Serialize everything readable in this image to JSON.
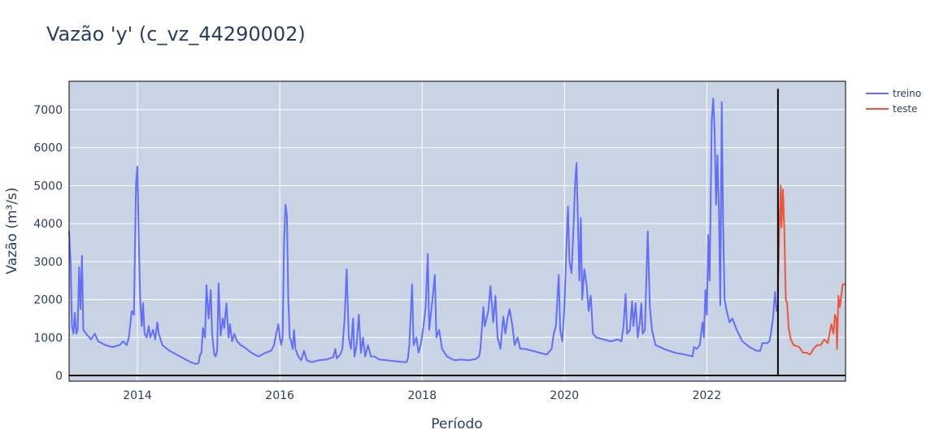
{
  "chart_data": {
    "type": "line",
    "title": "Vazão 'y' (c_vz_44290002)",
    "xlabel": "Período",
    "ylabel": "Vazão (m³/s)",
    "xlim": [
      2013.04,
      2023.95
    ],
    "ylim": [
      -150,
      7750
    ],
    "x_ticks": [
      2014,
      2016,
      2018,
      2020,
      2022
    ],
    "x_tick_labels": [
      "2014",
      "2016",
      "2018",
      "2020",
      "2022"
    ],
    "y_ticks": [
      0,
      1000,
      2000,
      3000,
      4000,
      5000,
      6000,
      7000
    ],
    "y_tick_labels": [
      "0",
      "1000",
      "2000",
      "3000",
      "4000",
      "5000",
      "6000",
      "7000"
    ],
    "grid": true,
    "legend_position": "top-right",
    "split_line_x": 2023.0,
    "colors": {
      "treino": "#636efa",
      "teste": "#ef553b",
      "plot_bg": "#c8d4e3",
      "split": "#000000"
    },
    "series": [
      {
        "name": "treino",
        "color": "#636efa",
        "points": [
          [
            2013.04,
            3800
          ],
          [
            2013.06,
            3000
          ],
          [
            2013.08,
            1300
          ],
          [
            2013.1,
            1100
          ],
          [
            2013.12,
            1650
          ],
          [
            2013.14,
            1100
          ],
          [
            2013.16,
            1200
          ],
          [
            2013.18,
            2850
          ],
          [
            2013.2,
            1750
          ],
          [
            2013.22,
            3150
          ],
          [
            2013.24,
            1200
          ],
          [
            2013.3,
            1050
          ],
          [
            2013.35,
            950
          ],
          [
            2013.4,
            1100
          ],
          [
            2013.45,
            900
          ],
          [
            2013.55,
            800
          ],
          [
            2013.65,
            750
          ],
          [
            2013.75,
            800
          ],
          [
            2013.8,
            900
          ],
          [
            2013.85,
            800
          ],
          [
            2013.88,
            1000
          ],
          [
            2013.92,
            1700
          ],
          [
            2013.95,
            1600
          ],
          [
            2013.98,
            5050
          ],
          [
            2014.0,
            5500
          ],
          [
            2014.02,
            3500
          ],
          [
            2014.04,
            2000
          ],
          [
            2014.06,
            1300
          ],
          [
            2014.08,
            1900
          ],
          [
            2014.1,
            1100
          ],
          [
            2014.13,
            1000
          ],
          [
            2014.16,
            1300
          ],
          [
            2014.18,
            1000
          ],
          [
            2014.22,
            1200
          ],
          [
            2014.25,
            950
          ],
          [
            2014.28,
            1400
          ],
          [
            2014.3,
            1100
          ],
          [
            2014.35,
            800
          ],
          [
            2014.45,
            650
          ],
          [
            2014.55,
            550
          ],
          [
            2014.65,
            450
          ],
          [
            2014.75,
            350
          ],
          [
            2014.82,
            300
          ],
          [
            2014.86,
            330
          ],
          [
            2014.88,
            550
          ],
          [
            2014.9,
            600
          ],
          [
            2014.92,
            1250
          ],
          [
            2014.95,
            1000
          ],
          [
            2014.97,
            2380
          ],
          [
            2015.0,
            1500
          ],
          [
            2015.03,
            2250
          ],
          [
            2015.05,
            1100
          ],
          [
            2015.08,
            550
          ],
          [
            2015.1,
            500
          ],
          [
            2015.12,
            650
          ],
          [
            2015.14,
            2430
          ],
          [
            2015.17,
            1050
          ],
          [
            2015.2,
            1500
          ],
          [
            2015.22,
            1250
          ],
          [
            2015.25,
            1900
          ],
          [
            2015.28,
            1000
          ],
          [
            2015.3,
            1350
          ],
          [
            2015.33,
            900
          ],
          [
            2015.36,
            1100
          ],
          [
            2015.4,
            900
          ],
          [
            2015.45,
            800
          ],
          [
            2015.5,
            750
          ],
          [
            2015.6,
            600
          ],
          [
            2015.7,
            500
          ],
          [
            2015.8,
            600
          ],
          [
            2015.88,
            650
          ],
          [
            2015.92,
            800
          ],
          [
            2015.95,
            1100
          ],
          [
            2015.98,
            1350
          ],
          [
            2016.0,
            1000
          ],
          [
            2016.02,
            800
          ],
          [
            2016.04,
            1000
          ],
          [
            2016.06,
            3500
          ],
          [
            2016.08,
            4500
          ],
          [
            2016.1,
            4200
          ],
          [
            2016.12,
            2000
          ],
          [
            2016.14,
            1000
          ],
          [
            2016.16,
            900
          ],
          [
            2016.18,
            700
          ],
          [
            2016.2,
            1200
          ],
          [
            2016.22,
            700
          ],
          [
            2016.26,
            500
          ],
          [
            2016.3,
            400
          ],
          [
            2016.34,
            650
          ],
          [
            2016.38,
            400
          ],
          [
            2016.45,
            350
          ],
          [
            2016.55,
            400
          ],
          [
            2016.65,
            420
          ],
          [
            2016.75,
            480
          ],
          [
            2016.78,
            700
          ],
          [
            2016.8,
            450
          ],
          [
            2016.85,
            550
          ],
          [
            2016.88,
            700
          ],
          [
            2016.91,
            1500
          ],
          [
            2016.94,
            2800
          ],
          [
            2016.97,
            1000
          ],
          [
            2017.0,
            700
          ],
          [
            2017.03,
            1500
          ],
          [
            2017.05,
            500
          ],
          [
            2017.08,
            800
          ],
          [
            2017.11,
            1600
          ],
          [
            2017.14,
            600
          ],
          [
            2017.17,
            1000
          ],
          [
            2017.2,
            500
          ],
          [
            2017.24,
            800
          ],
          [
            2017.28,
            500
          ],
          [
            2017.33,
            500
          ],
          [
            2017.4,
            420
          ],
          [
            2017.5,
            400
          ],
          [
            2017.6,
            380
          ],
          [
            2017.7,
            360
          ],
          [
            2017.78,
            350
          ],
          [
            2017.8,
            450
          ],
          [
            2017.82,
            800
          ],
          [
            2017.86,
            2400
          ],
          [
            2017.88,
            800
          ],
          [
            2017.92,
            1000
          ],
          [
            2017.95,
            600
          ],
          [
            2017.98,
            800
          ],
          [
            2018.02,
            1300
          ],
          [
            2018.05,
            1800
          ],
          [
            2018.08,
            3200
          ],
          [
            2018.1,
            1200
          ],
          [
            2018.14,
            1900
          ],
          [
            2018.18,
            2650
          ],
          [
            2018.2,
            1000
          ],
          [
            2018.24,
            1200
          ],
          [
            2018.28,
            700
          ],
          [
            2018.35,
            500
          ],
          [
            2018.45,
            400
          ],
          [
            2018.55,
            420
          ],
          [
            2018.65,
            400
          ],
          [
            2018.75,
            430
          ],
          [
            2018.8,
            500
          ],
          [
            2018.82,
            700
          ],
          [
            2018.86,
            1800
          ],
          [
            2018.88,
            1300
          ],
          [
            2018.93,
            1700
          ],
          [
            2018.96,
            2350
          ],
          [
            2019.0,
            1400
          ],
          [
            2019.03,
            2100
          ],
          [
            2019.06,
            1000
          ],
          [
            2019.1,
            700
          ],
          [
            2019.14,
            1550
          ],
          [
            2019.17,
            1100
          ],
          [
            2019.2,
            1500
          ],
          [
            2019.23,
            1750
          ],
          [
            2019.27,
            1300
          ],
          [
            2019.3,
            800
          ],
          [
            2019.34,
            1000
          ],
          [
            2019.38,
            700
          ],
          [
            2019.45,
            700
          ],
          [
            2019.55,
            650
          ],
          [
            2019.65,
            600
          ],
          [
            2019.75,
            550
          ],
          [
            2019.82,
            700
          ],
          [
            2019.85,
            1100
          ],
          [
            2019.88,
            1300
          ],
          [
            2019.92,
            2650
          ],
          [
            2019.94,
            1200
          ],
          [
            2019.97,
            900
          ],
          [
            2020.0,
            1800
          ],
          [
            2020.03,
            3500
          ],
          [
            2020.05,
            4450
          ],
          [
            2020.07,
            3000
          ],
          [
            2020.1,
            2700
          ],
          [
            2020.13,
            4000
          ],
          [
            2020.15,
            5100
          ],
          [
            2020.17,
            5600
          ],
          [
            2020.19,
            4000
          ],
          [
            2020.21,
            2500
          ],
          [
            2020.23,
            4150
          ],
          [
            2020.25,
            2000
          ],
          [
            2020.28,
            2800
          ],
          [
            2020.31,
            2400
          ],
          [
            2020.34,
            1700
          ],
          [
            2020.37,
            2100
          ],
          [
            2020.4,
            1100
          ],
          [
            2020.45,
            1000
          ],
          [
            2020.55,
            950
          ],
          [
            2020.65,
            900
          ],
          [
            2020.75,
            950
          ],
          [
            2020.8,
            900
          ],
          [
            2020.83,
            1300
          ],
          [
            2020.86,
            2150
          ],
          [
            2020.88,
            1100
          ],
          [
            2020.92,
            1200
          ],
          [
            2020.95,
            1950
          ],
          [
            2020.97,
            1300
          ],
          [
            2021.0,
            1900
          ],
          [
            2021.03,
            1000
          ],
          [
            2021.06,
            1400
          ],
          [
            2021.08,
            1900
          ],
          [
            2021.1,
            1100
          ],
          [
            2021.13,
            1200
          ],
          [
            2021.17,
            3800
          ],
          [
            2021.2,
            1800
          ],
          [
            2021.23,
            1200
          ],
          [
            2021.28,
            800
          ],
          [
            2021.4,
            700
          ],
          [
            2021.55,
            600
          ],
          [
            2021.7,
            550
          ],
          [
            2021.8,
            500
          ],
          [
            2021.82,
            750
          ],
          [
            2021.86,
            700
          ],
          [
            2021.9,
            800
          ],
          [
            2021.94,
            1400
          ],
          [
            2021.96,
            1000
          ],
          [
            2021.98,
            2250
          ],
          [
            2022.0,
            1600
          ],
          [
            2022.02,
            3700
          ],
          [
            2022.04,
            2500
          ],
          [
            2022.07,
            6700
          ],
          [
            2022.09,
            7300
          ],
          [
            2022.11,
            6500
          ],
          [
            2022.13,
            4500
          ],
          [
            2022.15,
            5800
          ],
          [
            2022.17,
            4400
          ],
          [
            2022.19,
            1850
          ],
          [
            2022.21,
            7200
          ],
          [
            2022.23,
            4000
          ],
          [
            2022.25,
            2000
          ],
          [
            2022.28,
            1700
          ],
          [
            2022.32,
            1400
          ],
          [
            2022.36,
            1500
          ],
          [
            2022.42,
            1200
          ],
          [
            2022.5,
            900
          ],
          [
            2022.6,
            750
          ],
          [
            2022.7,
            650
          ],
          [
            2022.75,
            650
          ],
          [
            2022.78,
            850
          ],
          [
            2022.85,
            850
          ],
          [
            2022.88,
            900
          ],
          [
            2022.9,
            1100
          ],
          [
            2022.93,
            1500
          ],
          [
            2022.96,
            2200
          ],
          [
            2022.98,
            1700
          ],
          [
            2023.0,
            1850
          ]
        ]
      },
      {
        "name": "teste",
        "color": "#ef553b",
        "points": [
          [
            2023.0,
            2200
          ],
          [
            2023.02,
            3900
          ],
          [
            2023.04,
            5000
          ],
          [
            2023.05,
            3900
          ],
          [
            2023.07,
            4900
          ],
          [
            2023.09,
            3800
          ],
          [
            2023.11,
            2000
          ],
          [
            2023.13,
            1900
          ],
          [
            2023.15,
            1250
          ],
          [
            2023.18,
            950
          ],
          [
            2023.22,
            800
          ],
          [
            2023.3,
            750
          ],
          [
            2023.35,
            600
          ],
          [
            2023.4,
            600
          ],
          [
            2023.45,
            550
          ],
          [
            2023.5,
            700
          ],
          [
            2023.55,
            800
          ],
          [
            2023.6,
            800
          ],
          [
            2023.65,
            950
          ],
          [
            2023.7,
            850
          ],
          [
            2023.72,
            1050
          ],
          [
            2023.75,
            1350
          ],
          [
            2023.78,
            1100
          ],
          [
            2023.8,
            1600
          ],
          [
            2023.82,
            1500
          ],
          [
            2023.83,
            700
          ],
          [
            2023.85,
            2100
          ],
          [
            2023.87,
            1800
          ],
          [
            2023.89,
            2100
          ],
          [
            2023.91,
            2400
          ],
          [
            2023.95,
            2400
          ]
        ]
      }
    ]
  }
}
